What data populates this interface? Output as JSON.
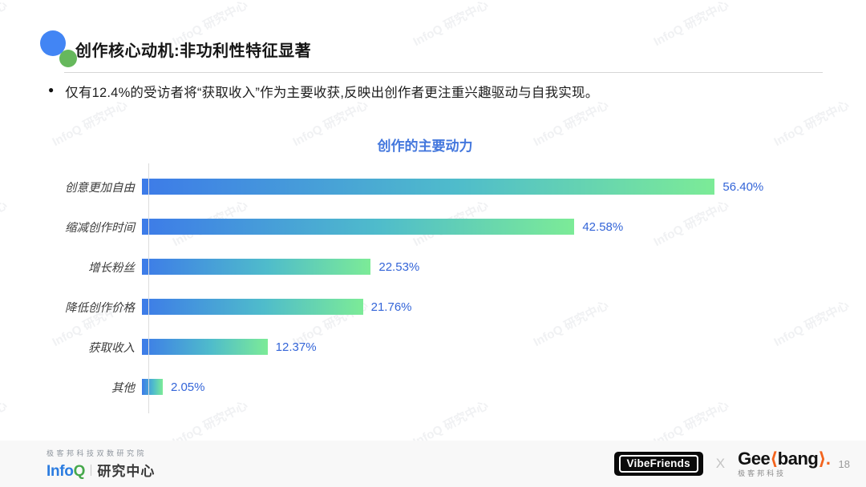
{
  "page": {
    "title": "创作核心动机:非功利性特征显著",
    "bullet": "仅有12.4%的受访者将“获取收入”作为主要收获,反映出创作者更注重兴趣驱动与自我实现。",
    "watermark_text": "InfoQ 研究中心",
    "page_number": "18"
  },
  "header_icon": {
    "blue": "#4285f4",
    "green": "#66b85c"
  },
  "chart_data": {
    "type": "bar",
    "orientation": "horizontal",
    "title": "创作的主要动力",
    "title_color": "#4377dd",
    "categories": [
      "创意更加自由",
      "缩减创作时间",
      "增长粉丝",
      "降低创作价格",
      "获取收入",
      "其他"
    ],
    "values": [
      56.4,
      42.58,
      22.53,
      21.76,
      12.37,
      2.05
    ],
    "value_labels": [
      "56.40%",
      "42.58%",
      "22.53%",
      "21.76%",
      "12.37%",
      "2.05%"
    ],
    "xlim": [
      0,
      60
    ],
    "grid": false,
    "legend": "none",
    "bar_gradient_start": "#3d7be8",
    "bar_gradient_mid": "#4fbccb",
    "bar_gradient_end": "#7ceb97",
    "value_color": "#3465d8"
  },
  "footer": {
    "left": {
      "org_line": "极客邦科技双数研究院",
      "brand_info": "Info",
      "brand_q": "Q",
      "brand_suffix": "研究中心",
      "info_color": "#2b7ce0",
      "q_color": "#46a84b"
    },
    "right": {
      "vibefriends_label": "VibeFriends",
      "separator": "X",
      "geek_part1": "Gee",
      "geek_k": "⟨",
      "geek_part2": "bang",
      "geek_arrow": "⟩",
      "geek_dot": ".",
      "geek_orange": "#f3641e",
      "geek_sub": "极客邦科技"
    }
  }
}
